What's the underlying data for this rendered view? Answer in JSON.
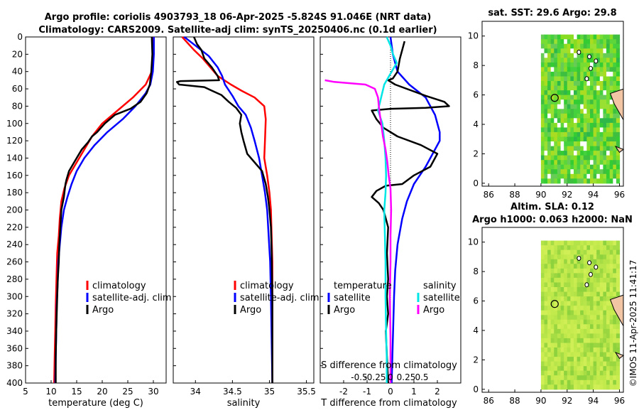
{
  "chart_data": [
    {
      "type": "line",
      "id": "temperature",
      "title_line1": "Argo profile: coriolis 4903793_18 06-Apr-2025 -5.824S 91.046E (NRT data)",
      "title_line2": "Climatology: CARS2009. Satellite-adj clim: synTS_20250406.nc (0.1d earlier)",
      "xlabel": "temperature (deg C)",
      "ylabel": "",
      "xlim": [
        5,
        32.5
      ],
      "ylim": [
        400,
        0
      ],
      "xticks": [
        "5",
        "10",
        "15",
        "20",
        "25",
        "30"
      ],
      "yticks": [
        "0",
        "20",
        "40",
        "60",
        "80",
        "100",
        "120",
        "140",
        "160",
        "180",
        "200",
        "220",
        "240",
        "260",
        "280",
        "300",
        "320",
        "340",
        "360",
        "380",
        "400"
      ],
      "legend": [
        "climatology",
        "satellite-adj. clim",
        "Argo"
      ],
      "series": [
        {
          "name": "climatology",
          "color": "#ff0000",
          "points": [
            [
              29.9,
              0
            ],
            [
              29.9,
              20
            ],
            [
              29.7,
              40
            ],
            [
              28.5,
              55
            ],
            [
              26,
              70
            ],
            [
              23,
              85
            ],
            [
              20,
              100
            ],
            [
              18,
              115
            ],
            [
              16.5,
              130
            ],
            [
              15,
              145
            ],
            [
              13.5,
              160
            ],
            [
              12.6,
              175
            ],
            [
              12,
              190
            ],
            [
              11.7,
              210
            ],
            [
              11.5,
              230
            ],
            [
              11.2,
              250
            ],
            [
              11.1,
              270
            ],
            [
              11,
              290
            ],
            [
              10.9,
              310
            ],
            [
              10.8,
              340
            ],
            [
              10.7,
              370
            ],
            [
              10.6,
              400
            ]
          ]
        },
        {
          "name": "satellite-adj. clim",
          "color": "#0000ff",
          "points": [
            [
              30.1,
              0
            ],
            [
              30.1,
              20
            ],
            [
              29.9,
              40
            ],
            [
              29.4,
              55
            ],
            [
              28.5,
              65
            ],
            [
              26.5,
              80
            ],
            [
              24,
              95
            ],
            [
              21,
              110
            ],
            [
              18.5,
              125
            ],
            [
              16.5,
              140
            ],
            [
              15,
              155
            ],
            [
              14,
              170
            ],
            [
              13.2,
              185
            ],
            [
              12.5,
              200
            ],
            [
              12,
              220
            ],
            [
              11.7,
              240
            ],
            [
              11.4,
              260
            ],
            [
              11.3,
              280
            ],
            [
              11.1,
              310
            ],
            [
              11,
              340
            ],
            [
              10.9,
              370
            ],
            [
              10.8,
              400
            ]
          ]
        },
        {
          "name": "Argo",
          "color": "#000000",
          "points": [
            [
              29.7,
              0
            ],
            [
              29.8,
              20
            ],
            [
              29.6,
              40
            ],
            [
              29.3,
              55
            ],
            [
              28.7,
              65
            ],
            [
              27.5,
              75
            ],
            [
              25.5,
              83
            ],
            [
              22.5,
              90
            ],
            [
              20.5,
              100
            ],
            [
              19,
              110
            ],
            [
              18,
              115
            ],
            [
              17.2,
              122
            ],
            [
              16,
              130
            ],
            [
              15,
              140
            ],
            [
              14.5,
              145
            ],
            [
              13.5,
              155
            ],
            [
              13,
              165
            ],
            [
              12.8,
              170
            ],
            [
              12.5,
              185
            ],
            [
              12,
              200
            ],
            [
              11.8,
              220
            ],
            [
              11.6,
              240
            ],
            [
              11.5,
              260
            ],
            [
              11.3,
              280
            ],
            [
              11.2,
              300
            ],
            [
              11.1,
              320
            ],
            [
              11,
              340
            ],
            [
              10.9,
              370
            ],
            [
              10.9,
              400
            ]
          ]
        }
      ]
    },
    {
      "type": "line",
      "id": "salinity",
      "xlabel": "salinity",
      "xlim": [
        33.7,
        35.6
      ],
      "ylim": [
        400,
        0
      ],
      "xticks": [
        "34",
        "34.5",
        "35",
        "35.5"
      ],
      "legend": [
        "climatology",
        "satellite-adj. clim",
        "Argo"
      ],
      "series": [
        {
          "name": "climatology",
          "color": "#ff0000",
          "points": [
            [
              33.82,
              0
            ],
            [
              33.98,
              15
            ],
            [
              34.1,
              25
            ],
            [
              34.2,
              35
            ],
            [
              34.3,
              45
            ],
            [
              34.48,
              55
            ],
            [
              34.62,
              62
            ],
            [
              34.8,
              70
            ],
            [
              34.93,
              80
            ],
            [
              34.95,
              95
            ],
            [
              34.94,
              120
            ],
            [
              34.93,
              140
            ],
            [
              34.97,
              160
            ],
            [
              35,
              180
            ],
            [
              35.02,
              200
            ],
            [
              35.03,
              230
            ],
            [
              35.04,
              260
            ],
            [
              35.04,
              300
            ],
            [
              35.04,
              350
            ],
            [
              35.04,
              400
            ]
          ]
        },
        {
          "name": "satellite-adj. clim",
          "color": "#0000ff",
          "points": [
            [
              33.85,
              0
            ],
            [
              34,
              10
            ],
            [
              34.18,
              22
            ],
            [
              34.3,
              35
            ],
            [
              34.36,
              45
            ],
            [
              34.4,
              55
            ],
            [
              34.5,
              68
            ],
            [
              34.58,
              80
            ],
            [
              34.68,
              90
            ],
            [
              34.75,
              105
            ],
            [
              34.8,
              120
            ],
            [
              34.86,
              140
            ],
            [
              34.9,
              160
            ],
            [
              34.94,
              180
            ],
            [
              34.97,
              200
            ],
            [
              34.99,
              230
            ],
            [
              35.01,
              260
            ],
            [
              35.02,
              300
            ],
            [
              35.03,
              350
            ],
            [
              35.04,
              400
            ]
          ]
        },
        {
          "name": "Argo",
          "color": "#000000",
          "points": [
            [
              33.98,
              0
            ],
            [
              34.02,
              8
            ],
            [
              34.08,
              15
            ],
            [
              34.12,
              25
            ],
            [
              34.22,
              35
            ],
            [
              34.3,
              45
            ],
            [
              34.32,
              50
            ],
            [
              33.8,
              51
            ],
            [
              33.75,
              52
            ],
            [
              33.78,
              55
            ],
            [
              34.12,
              58
            ],
            [
              34.22,
              62
            ],
            [
              34.35,
              67
            ],
            [
              34.45,
              75
            ],
            [
              34.55,
              82
            ],
            [
              34.62,
              90
            ],
            [
              34.6,
              100
            ],
            [
              34.62,
              110
            ],
            [
              34.65,
              120
            ],
            [
              34.7,
              135
            ],
            [
              34.8,
              145
            ],
            [
              34.9,
              155
            ],
            [
              34.95,
              170
            ],
            [
              34.98,
              185
            ],
            [
              35,
              200
            ],
            [
              35.02,
              220
            ],
            [
              35.03,
              250
            ],
            [
              35.04,
              300
            ],
            [
              35.04,
              350
            ],
            [
              35.04,
              400
            ]
          ]
        }
      ]
    },
    {
      "type": "line",
      "id": "difference",
      "xlabel": "T difference from climatology",
      "xlabel_top": "S difference from climatology",
      "xlim": [
        -3,
        3
      ],
      "s_xlim": [
        -1.125,
        1.125
      ],
      "ylim": [
        400,
        0
      ],
      "xticks": [
        "-2",
        "-1",
        "0",
        "1",
        "2"
      ],
      "s_xticks": [
        "-0.5",
        "-0.25",
        "0",
        "0.25",
        "0.5"
      ],
      "legend": {
        "left_header": "temperature",
        "right_header": "salinity",
        "items": [
          "satellite",
          "Argo"
        ]
      },
      "series": [
        {
          "name": "T satellite",
          "color": "#0000ff",
          "points": [
            [
              0,
              0
            ],
            [
              0.1,
              20
            ],
            [
              0.3,
              40
            ],
            [
              0.8,
              55
            ],
            [
              1.5,
              70
            ],
            [
              1.9,
              90
            ],
            [
              2.1,
              110
            ],
            [
              2.1,
              120
            ],
            [
              1.5,
              150
            ],
            [
              1,
              170
            ],
            [
              0.7,
              190
            ],
            [
              0.5,
              210
            ],
            [
              0.3,
              240
            ],
            [
              0.2,
              270
            ],
            [
              0.15,
              300
            ],
            [
              0.1,
              350
            ],
            [
              0.05,
              400
            ]
          ]
        },
        {
          "name": "T Argo",
          "color": "#000000",
          "points": [
            [
              0.6,
              5
            ],
            [
              0.5,
              15
            ],
            [
              0.4,
              25
            ],
            [
              0.3,
              40
            ],
            [
              0.1,
              48
            ],
            [
              -0.1,
              50
            ],
            [
              0.2,
              55
            ],
            [
              0.9,
              62
            ],
            [
              1.5,
              68
            ],
            [
              2.3,
              75
            ],
            [
              2.5,
              80
            ],
            [
              1.5,
              82
            ],
            [
              0,
              83
            ],
            [
              -0.8,
              85
            ],
            [
              -0.6,
              95
            ],
            [
              -0.3,
              105
            ],
            [
              0.3,
              115
            ],
            [
              1.3,
              125
            ],
            [
              2,
              135
            ],
            [
              1.7,
              150
            ],
            [
              1,
              160
            ],
            [
              0.5,
              170
            ],
            [
              -0.2,
              172
            ],
            [
              -0.6,
              178
            ],
            [
              -0.8,
              185
            ],
            [
              -0.5,
              192
            ],
            [
              -0.3,
              200
            ],
            [
              -0.1,
              220
            ],
            [
              -0.15,
              250
            ],
            [
              -0.1,
              280
            ],
            [
              -0.15,
              300
            ],
            [
              -0.1,
              320
            ],
            [
              -0.2,
              340
            ],
            [
              -0.15,
              370
            ],
            [
              -0.1,
              400
            ]
          ]
        },
        {
          "name": "S satellite",
          "color": "#00e5e5",
          "points": [
            [
              -0.06,
              0
            ],
            [
              0,
              10
            ],
            [
              0.04,
              20
            ],
            [
              0.1,
              30
            ],
            [
              -0.02,
              45
            ],
            [
              -0.1,
              55
            ],
            [
              -0.15,
              70
            ],
            [
              -0.2,
              85
            ],
            [
              -0.13,
              100
            ],
            [
              -0.1,
              120
            ],
            [
              -0.08,
              140
            ],
            [
              -0.07,
              160
            ],
            [
              -0.08,
              180
            ],
            [
              -0.1,
              200
            ],
            [
              -0.09,
              230
            ],
            [
              -0.08,
              260
            ],
            [
              -0.08,
              300
            ],
            [
              -0.07,
              340
            ],
            [
              -0.06,
              370
            ],
            [
              -0.06,
              400
            ]
          ]
        },
        {
          "name": "S Argo",
          "color": "#ff00ff",
          "points": [
            [
              -1.05,
              50
            ],
            [
              -0.9,
              52
            ],
            [
              -0.4,
              55
            ],
            [
              -0.25,
              60
            ],
            [
              -0.2,
              70
            ],
            [
              -0.18,
              85
            ],
            [
              -0.15,
              100
            ],
            [
              -0.12,
              115
            ],
            [
              -0.08,
              130
            ],
            [
              -0.05,
              145
            ],
            [
              -0.03,
              160
            ],
            [
              0,
              175
            ],
            [
              0.01,
              200
            ],
            [
              0,
              230
            ],
            [
              0,
              260
            ],
            [
              -0.01,
              300
            ],
            [
              0,
              350
            ],
            [
              0,
              400
            ]
          ]
        }
      ]
    },
    {
      "type": "heatmap",
      "id": "sst_map",
      "title": "sat. SST: 29.6 Argo: 29.8",
      "xticks": [
        "86",
        "88",
        "90",
        "92",
        "94",
        "96"
      ],
      "yticks": [
        "0",
        "2",
        "4",
        "6",
        "8",
        "10"
      ],
      "xlim": [
        85.5,
        96.3
      ],
      "ylim": [
        -0.2,
        11
      ],
      "marker": [
        91.05,
        5.8
      ]
    },
    {
      "type": "heatmap",
      "id": "sla_map",
      "title_line1": "Altim. SLA: 0.12",
      "title_line2": "Argo h1000: 0.063 h2000: NaN",
      "xticks": [
        "86",
        "88",
        "90",
        "92",
        "94",
        "96"
      ],
      "yticks": [
        "0",
        "2",
        "4",
        "6",
        "8",
        "10"
      ],
      "xlim": [
        85.5,
        96.3
      ],
      "ylim": [
        -0.2,
        11
      ],
      "marker": [
        91.05,
        5.8
      ]
    }
  ],
  "footer": {
    "stamp": "©IMOS 11-Apr-2025 11:41:17"
  }
}
